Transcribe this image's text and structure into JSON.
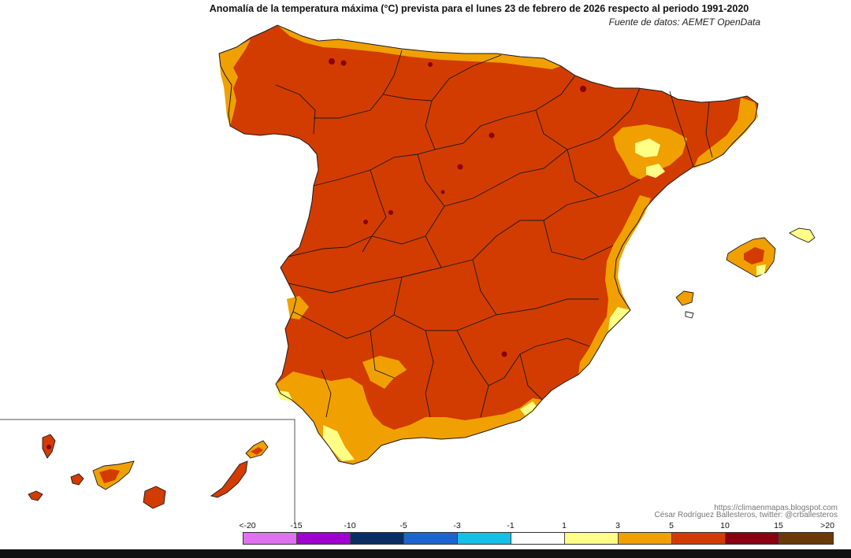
{
  "title": "Anomalía de la temperatura máxima (°C) prevista para el lunes 23 de febrero de 2026 respecto al periodo 1991-2020",
  "source": "Fuente de datos: AEMET OpenData",
  "credit_url": "https://climaenmapas.blogspot.com",
  "credit_author": "César Rodríguez Ballesteros, twitter: @crballesteros",
  "legend": {
    "tick_labels": [
      "<-20",
      "-15",
      "-10",
      "-5",
      "-3",
      "-1",
      "1",
      "3",
      "5",
      "10",
      "15",
      ">20"
    ],
    "colors": [
      "#e070f0",
      "#a000d0",
      "#0a2e64",
      "#1c64d0",
      "#14c0e8",
      "#ffffff",
      "#ffff88",
      "#f0a000",
      "#d23c00",
      "#8a0010",
      "#6a3a06"
    ]
  },
  "map_colors": {
    "sea": "#ffffff",
    "anomaly_5_10": "#d23c00",
    "anomaly_3_5": "#f0a000",
    "anomaly_1_3": "#ffff88",
    "anomaly_10_15": "#8a0010",
    "borders": "#1a1a1a"
  }
}
